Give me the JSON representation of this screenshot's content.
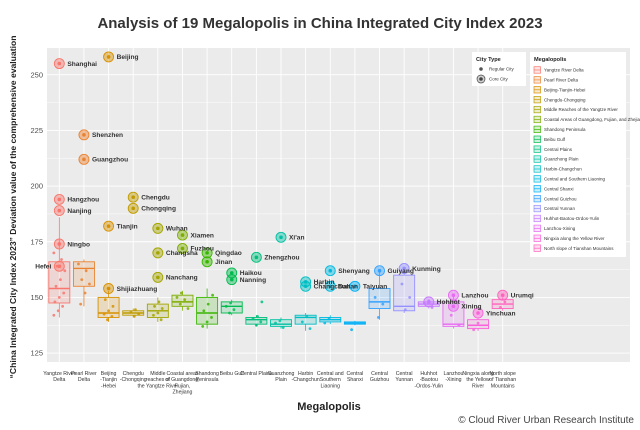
{
  "chart_data": {
    "type": "box",
    "title": "Analysis of 19 Megalopolis in China Integrated City Index 2023",
    "xlabel": "Megalopolis",
    "ylabel": "“China Integrated City Index 2023” Deviation value of the comprehensive evaluation",
    "ylim": [
      121,
      262
    ],
    "yticks": [
      125,
      150,
      175,
      200,
      225,
      250
    ],
    "grid": true,
    "legend_position": "right",
    "credit": "© Cloud River Urban Research Institute",
    "city_type_legend": {
      "title": "City Type",
      "items": [
        {
          "key": "regular",
          "label": "Regular City"
        },
        {
          "key": "core",
          "label": "Core City"
        }
      ]
    },
    "legend_title": "Megalopolis",
    "groups": [
      {
        "name": "Yangtze River Delta",
        "tick": [
          "Yangtze River",
          "Delta"
        ],
        "legend": "Yangtze River Delta",
        "color": "#F8766D",
        "box": {
          "q1": 147.5,
          "median": 154,
          "q3": 166,
          "whisker_low": 141,
          "whisker_high": 186
        },
        "regular_points": [
          142,
          144,
          146,
          148,
          150,
          152,
          155,
          158,
          162,
          164,
          167,
          170
        ],
        "core": [
          {
            "name": "Shanghai",
            "value": 255
          },
          {
            "name": "Hangzhou",
            "value": 194
          },
          {
            "name": "Nanjing",
            "value": 189
          },
          {
            "name": "Ningbo",
            "value": 174
          },
          {
            "name": "Hefei",
            "value": 164
          }
        ]
      },
      {
        "name": "Pearl River Delta",
        "tick": [
          "Pearl River",
          "Delta"
        ],
        "legend": "Pearl River Delta",
        "color": "#EA8331",
        "box": {
          "q1": 155,
          "median": 163,
          "q3": 166,
          "whisker_low": 146,
          "whisker_high": 167
        },
        "regular_points": [
          147,
          152,
          156,
          158,
          162,
          165
        ],
        "core": [
          {
            "name": "Shenzhen",
            "value": 223
          },
          {
            "name": "Guangzhou",
            "value": 212
          }
        ]
      },
      {
        "name": "Beijing-Tianjin-Hebei",
        "tick": [
          "Beijing",
          "-Tianjin",
          "-Hebei"
        ],
        "legend": "Beijing-Tianjin-Hebei",
        "color": "#D89000",
        "box": {
          "q1": 141,
          "median": 143,
          "q3": 150,
          "whisker_low": 139,
          "whisker_high": 153
        },
        "regular_points": [
          140,
          141.5,
          142.5,
          144,
          146,
          149
        ],
        "core": [
          {
            "name": "Beijing",
            "value": 258
          },
          {
            "name": "Tianjin",
            "value": 182
          },
          {
            "name": "Shijiazhuang",
            "value": 154
          }
        ]
      },
      {
        "name": "Chengdu-Chongqing",
        "tick": [
          "Chengdu",
          "-Chongqing"
        ],
        "legend": "Chengdu-Chongqing",
        "color": "#C09B00",
        "box": {
          "q1": 142,
          "median": 143,
          "q3": 144,
          "whisker_low": 141,
          "whisker_high": 145
        },
        "regular_points": [
          141.5,
          142.5,
          143.5,
          144.5
        ],
        "core": [
          {
            "name": "Chengdu",
            "value": 195
          },
          {
            "name": "Chongqing",
            "value": 190
          }
        ]
      },
      {
        "name": "Middle reaches of the Yangtze River",
        "tick": [
          "Middle",
          "reaches of",
          "the Yangtze River"
        ],
        "legend": "Middle Reaches of the Yangtze River",
        "color": "#A3A500",
        "box": {
          "q1": 141,
          "median": 144,
          "q3": 147,
          "whisker_low": 139,
          "whisker_high": 150
        },
        "regular_points": [
          140,
          142,
          143,
          145,
          146,
          148
        ],
        "core": [
          {
            "name": "Wuhan",
            "value": 181
          },
          {
            "name": "Changsha",
            "value": 170
          },
          {
            "name": "Nanchang",
            "value": 159
          }
        ]
      },
      {
        "name": "Coastal areas of Guangdong, Fujian, and Zhejiang",
        "tick": [
          "Coastal areas",
          "of Guangdong,",
          "Fujian,",
          "Zhejiang"
        ],
        "legend": "Coastal Areas of Guangdong, Fujian, and Zhejiang",
        "color": "#7CAE00",
        "box": {
          "q1": 146,
          "median": 148,
          "q3": 151,
          "whisker_low": 144,
          "whisker_high": 153
        },
        "regular_points": [
          145,
          147,
          149,
          150,
          152
        ],
        "core": [
          {
            "name": "Xiamen",
            "value": 178
          },
          {
            "name": "Fuzhou",
            "value": 172
          }
        ]
      },
      {
        "name": "Shandong Peninsula",
        "tick": [
          "Shandong",
          "Peninsula"
        ],
        "legend": "Shandong Peninsula",
        "color": "#39B600",
        "box": {
          "q1": 138,
          "median": 143,
          "q3": 150,
          "whisker_low": 136,
          "whisker_high": 154
        },
        "regular_points": [
          137,
          139,
          141,
          144,
          147,
          151
        ],
        "core": [
          {
            "name": "Qingdao",
            "value": 170
          },
          {
            "name": "Jinan",
            "value": 166
          }
        ]
      },
      {
        "name": "Beibu Gulf",
        "tick": [
          "Beibu Gulf"
        ],
        "legend": "Beibu Gulf",
        "color": "#00BB4E",
        "box": {
          "q1": 143,
          "median": 146,
          "q3": 148,
          "whisker_low": 142,
          "whisker_high": 149
        },
        "regular_points": [
          143,
          144.5,
          146,
          147.5
        ],
        "core": [
          {
            "name": "Haikou",
            "value": 161
          },
          {
            "name": "Nanning",
            "value": 158
          }
        ]
      },
      {
        "name": "Central Plains",
        "tick": [
          "Central Plains"
        ],
        "legend": "Central Plains",
        "color": "#00BF7D",
        "box": {
          "q1": 138,
          "median": 140,
          "q3": 141,
          "whisker_low": 137,
          "whisker_high": 142
        },
        "regular_points": [
          137.5,
          139,
          140.5,
          141.5,
          148
        ],
        "core": [
          {
            "name": "Zhengzhou",
            "value": 168
          }
        ]
      },
      {
        "name": "Guanzhong Plain",
        "tick": [
          "Guanzhong",
          "Plain"
        ],
        "legend": "Guanzhong Plain",
        "color": "#00C1A3",
        "box": {
          "q1": 137,
          "median": 138,
          "q3": 140,
          "whisker_low": 136,
          "whisker_high": 141
        },
        "regular_points": [
          136.5,
          138.5,
          139.5
        ],
        "core": [
          {
            "name": "Xi'an",
            "value": 177
          }
        ]
      },
      {
        "name": "Harbin-Changchun",
        "tick": [
          "Harbin",
          "-Changchun"
        ],
        "legend": "Harbin-Changchun",
        "color": "#00BFC4",
        "box": {
          "q1": 138,
          "median": 141,
          "q3": 142,
          "whisker_low": 135,
          "whisker_high": 143
        },
        "regular_points": [
          136,
          139,
          141.5
        ],
        "core": [
          {
            "name": "Harbin",
            "value": 157
          },
          {
            "name": "Changchun",
            "value": 155
          }
        ]
      },
      {
        "name": "Central and Southern Liaoning",
        "tick": [
          "Central and",
          "Southern",
          "Liaoning"
        ],
        "legend": "Central and Southern Liaoning",
        "color": "#00BAE0",
        "box": {
          "q1": 139,
          "median": 140,
          "q3": 141,
          "whisker_low": 138,
          "whisker_high": 142
        },
        "regular_points": [
          138.5,
          140.5
        ],
        "core": [
          {
            "name": "Shenyang",
            "value": 162
          },
          {
            "name": "Dalian",
            "value": 155
          }
        ]
      },
      {
        "name": "Central Shanxi",
        "tick": [
          "Central",
          "Shanxi"
        ],
        "legend": "Central Shanxi",
        "color": "#00B0F6",
        "box": {
          "q1": 138,
          "median": 138.5,
          "q3": 139,
          "whisker_low": 137.5,
          "whisker_high": 139.5
        },
        "regular_points": [
          135.5
        ],
        "core": [
          {
            "name": "Taiyuan",
            "value": 155
          }
        ]
      },
      {
        "name": "Central Guizhou",
        "tick": [
          "Central",
          "Guizhou"
        ],
        "legend": "Central Guizhou",
        "color": "#35A2FF",
        "box": {
          "q1": 145,
          "median": 148,
          "q3": 154,
          "whisker_low": 140,
          "whisker_high": 162
        },
        "regular_points": [
          141,
          147,
          150
        ],
        "core": [
          {
            "name": "Guiyang",
            "value": 162
          }
        ]
      },
      {
        "name": "Central Yunnan",
        "tick": [
          "Central",
          "Yunnan"
        ],
        "legend": "Central Yunnan",
        "color": "#9590FF",
        "box": {
          "q1": 144,
          "median": 146,
          "q3": 160,
          "whisker_low": 143,
          "whisker_high": 163
        },
        "regular_points": [
          144.5,
          150,
          156
        ],
        "core": [
          {
            "name": "Kunming",
            "value": 163
          }
        ]
      },
      {
        "name": "Hohhot-Baotou-Ordos-Yulin",
        "tick": [
          "Huhhot",
          "-Baotou",
          "-Ordos-Yulin"
        ],
        "legend": "Huhhot-Baotou-Ordos-Yulin",
        "color": "#C77CFF",
        "box": {
          "q1": 146,
          "median": 147,
          "q3": 148,
          "whisker_low": 145,
          "whisker_high": 149
        },
        "regular_points": [
          145.5,
          147.5,
          148.5
        ],
        "core": [
          {
            "name": "Hohhot",
            "value": 148
          }
        ]
      },
      {
        "name": "Lanzhou-Xining",
        "tick": [
          "Lanzhou",
          "-Xining"
        ],
        "legend": "Lanzhou-Xining",
        "color": "#E76BF3",
        "box": {
          "q1": 137,
          "median": 138,
          "q3": 148,
          "whisker_low": 136,
          "whisker_high": 151
        },
        "regular_points": [
          137.5,
          142,
          148.5
        ],
        "core": [
          {
            "name": "Lanzhou",
            "value": 151
          },
          {
            "name": "Xining",
            "value": 146
          }
        ]
      },
      {
        "name": "Ningxia along the Yellow River",
        "tick": [
          "Ningxia along",
          "the Yellow",
          "River"
        ],
        "legend": "Ningxia along the Yellow River",
        "color": "#FA62DB",
        "box": {
          "q1": 136,
          "median": 137.5,
          "q3": 140,
          "whisker_low": 135,
          "whisker_high": 141
        },
        "regular_points": [
          135.5,
          138.5
        ],
        "core": [
          {
            "name": "Yinchuan",
            "value": 143
          }
        ]
      },
      {
        "name": "North slope of Tianshan Mountains",
        "tick": [
          "North slope",
          "of Tianshan",
          "Mountains"
        ],
        "legend": "North slope of Tianshan Mountains",
        "color": "#FF62BC",
        "box": {
          "q1": 145,
          "median": 147,
          "q3": 149,
          "whisker_low": 144,
          "whisker_high": 150
        },
        "regular_points": [
          145.5,
          148
        ],
        "core": [
          {
            "name": "Urumqi",
            "value": 151
          }
        ]
      }
    ]
  }
}
